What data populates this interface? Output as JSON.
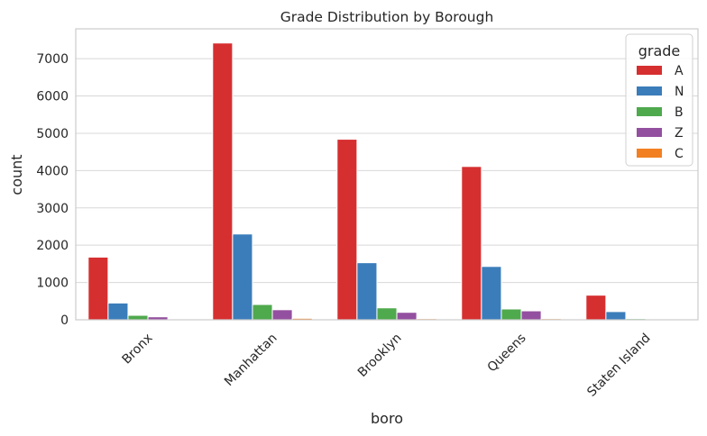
{
  "chart_data": {
    "type": "bar",
    "title": "Grade Distribution by Borough",
    "xlabel": "boro",
    "ylabel": "count",
    "categories": [
      "Bronx",
      "Manhattan",
      "Brooklyn",
      "Queens",
      "Staten Island"
    ],
    "ylim": [
      0,
      7800
    ],
    "yticks": [
      0,
      1000,
      2000,
      3000,
      4000,
      5000,
      6000,
      7000
    ],
    "grid": true,
    "legend": {
      "title": "grade",
      "placement": "top-right"
    },
    "series": [
      {
        "name": "A",
        "color": "#d62f30",
        "values": [
          1680,
          7420,
          4840,
          4110,
          660
        ]
      },
      {
        "name": "N",
        "color": "#3b7dba",
        "values": [
          450,
          2300,
          1530,
          1430,
          220
        ]
      },
      {
        "name": "B",
        "color": "#4fa94d",
        "values": [
          120,
          410,
          320,
          290,
          30
        ]
      },
      {
        "name": "Z",
        "color": "#9450a0",
        "values": [
          80,
          270,
          200,
          240,
          20
        ]
      },
      {
        "name": "C",
        "color": "#f28022",
        "values": [
          15,
          40,
          30,
          30,
          5
        ]
      }
    ]
  }
}
